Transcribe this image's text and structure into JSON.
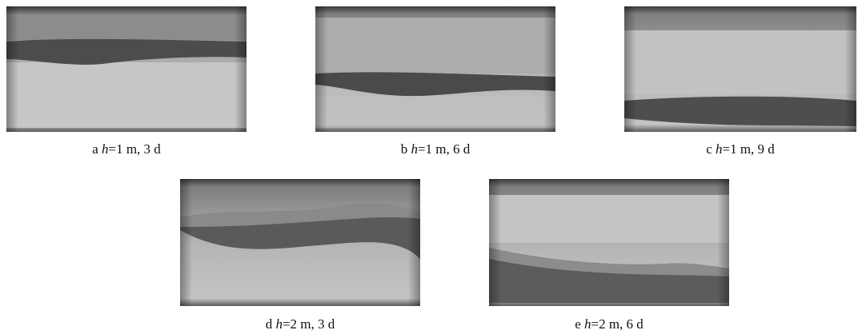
{
  "panels": [
    {
      "letter": "a",
      "variable": "h",
      "text": "=1 m, 3 d"
    },
    {
      "letter": "b",
      "variable": "h",
      "text": "=1 m, 6 d"
    },
    {
      "letter": "c",
      "variable": "h",
      "text": "=1 m, 9 d"
    },
    {
      "letter": "d",
      "variable": "h",
      "text": "=2 m, 3 d"
    },
    {
      "letter": "e",
      "variable": "h",
      "text": "=2 m, 6 d"
    }
  ]
}
